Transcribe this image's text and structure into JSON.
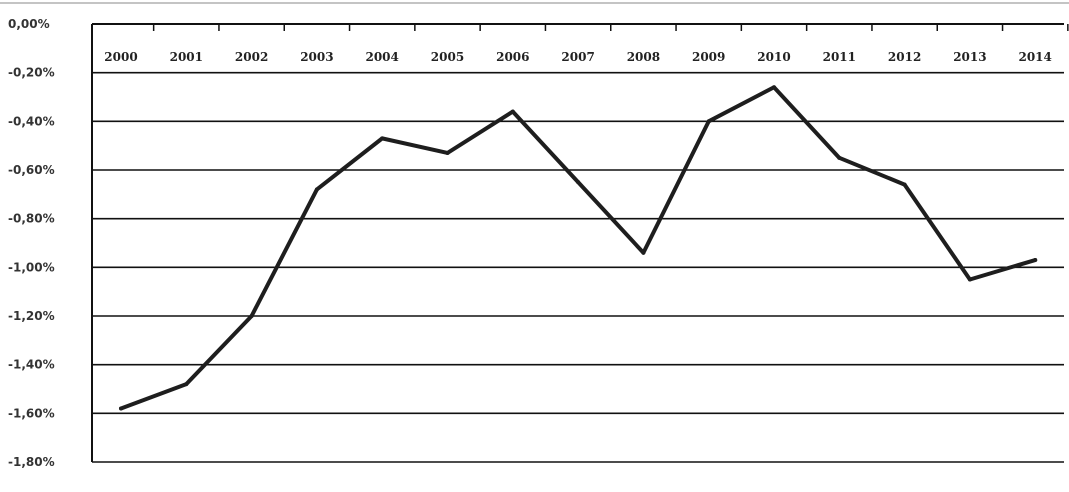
{
  "chart_data": {
    "type": "line",
    "title": "",
    "xlabel": "",
    "ylabel": "",
    "categories": [
      "2000",
      "2001",
      "2002",
      "2003",
      "2004",
      "2005",
      "2006",
      "2007",
      "2008",
      "2009",
      "2010",
      "2011",
      "2012",
      "2013",
      "2014"
    ],
    "series": [
      {
        "values": [
          -1.58,
          -1.48,
          -1.2,
          -0.68,
          -0.47,
          -0.53,
          -0.36,
          -0.65,
          -0.94,
          -0.4,
          -0.26,
          -0.55,
          -0.66,
          -1.05,
          -0.97
        ]
      }
    ],
    "ylim": [
      -1.8,
      0.0
    ],
    "yticks": [
      0.0,
      -0.2,
      -0.4,
      -0.6,
      -0.8,
      -1.0,
      -1.2,
      -1.4,
      -1.6,
      -1.8
    ],
    "ytick_labels": [
      "0,00%",
      "-0,20%",
      "-0,40%",
      "-0,60%",
      "-0,80%",
      "-1,00%",
      "-1,20%",
      "-1,40%",
      "-1,60%",
      "-1,80%"
    ],
    "grid": true,
    "legend": "none",
    "colors": {
      "line": "#1e1e1e",
      "grid": "#111111"
    }
  }
}
